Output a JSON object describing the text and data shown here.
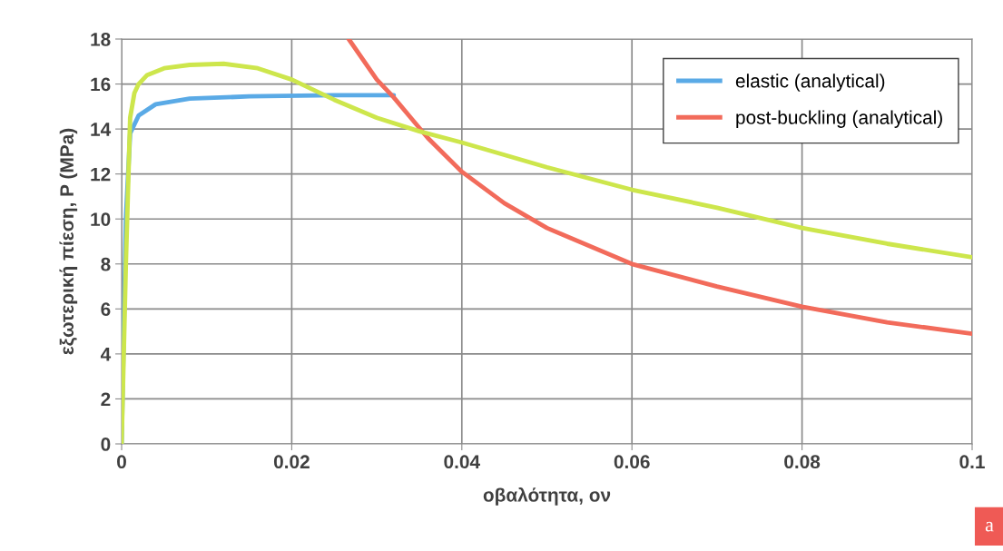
{
  "chart_data": {
    "type": "line",
    "xlabel": "οβαλότητα, ον",
    "ylabel": "εξωτερική πίεση, P (MPa)",
    "xlim": [
      0,
      0.1
    ],
    "xticks": [
      {
        "value": 0,
        "label": "0"
      },
      0.02,
      0.04,
      0.06,
      0.08,
      0.1
    ],
    "ylim": [
      0,
      18
    ],
    "yticks": [
      0,
      2,
      4,
      6,
      8,
      10,
      12,
      14,
      16,
      18
    ],
    "grid": true,
    "legend": "top right",
    "marker": "none",
    "line_style": "solid",
    "annotations": [
      "a"
    ],
    "series": [
      {
        "name": "elastic (analytical)",
        "color": "#5aaae6",
        "x": [
          0,
          0.0005,
          0.001,
          0.002,
          0.004,
          0.008,
          0.015,
          0.025,
          0.032
        ],
        "values": [
          0,
          10,
          13.8,
          14.6,
          15.1,
          15.35,
          15.45,
          15.5,
          15.5
        ]
      },
      {
        "name": "post-buckling (analytical)",
        "color": "#f26b5b",
        "x": [
          0.0267,
          0.03,
          0.032,
          0.034,
          0.036,
          0.04,
          0.045,
          0.05,
          0.06,
          0.07,
          0.08,
          0.09,
          0.1
        ],
        "values": [
          18,
          16.2,
          15.4,
          14.5,
          13.6,
          12.1,
          10.7,
          9.6,
          8.0,
          7.0,
          6.1,
          5.4,
          4.9
        ]
      },
      {
        "color": "#cde64c",
        "x": [
          0,
          0.0005,
          0.001,
          0.0015,
          0.002,
          0.003,
          0.005,
          0.008,
          0.012,
          0.016,
          0.02,
          0.025,
          0.03,
          0.035,
          0.04,
          0.05,
          0.06,
          0.07,
          0.08,
          0.09,
          0.1
        ],
        "values": [
          0,
          8,
          14.5,
          15.6,
          16.0,
          16.4,
          16.7,
          16.85,
          16.9,
          16.7,
          16.2,
          15.3,
          14.5,
          13.9,
          13.4,
          12.3,
          11.3,
          10.5,
          9.6,
          8.9,
          8.3
        ]
      }
    ]
  }
}
